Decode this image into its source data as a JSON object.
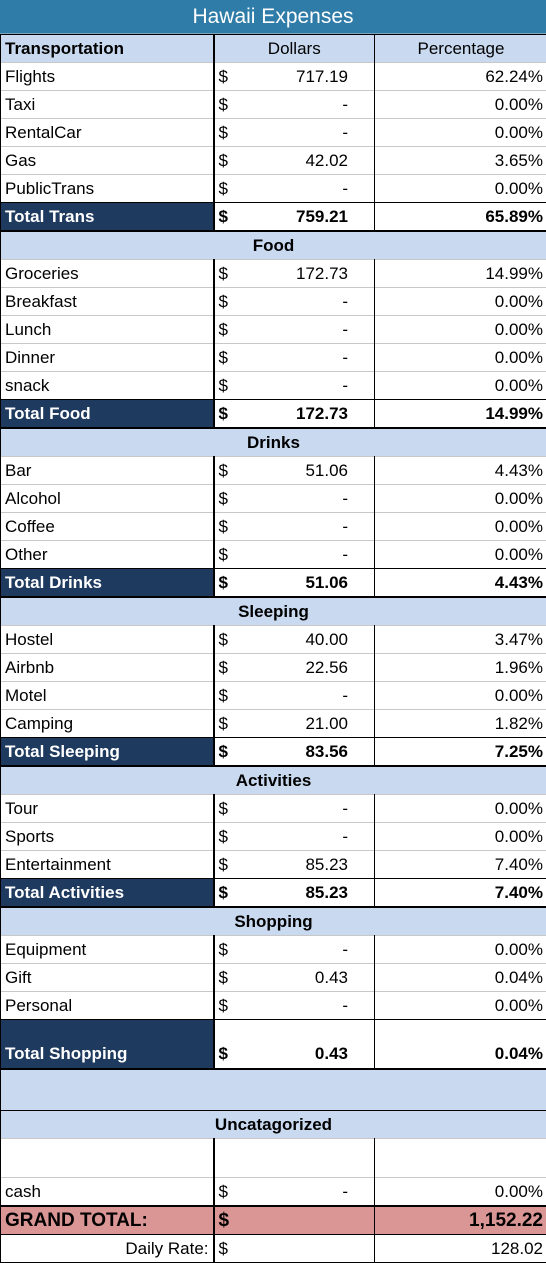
{
  "title": "Hawaii Expenses",
  "columns": {
    "category": "Transportation",
    "dollars": "Dollars",
    "percentage": "Percentage"
  },
  "currency": "$",
  "sections": [
    {
      "name": "",
      "rows": [
        {
          "label": "Flights",
          "amount": "717.19",
          "pct": "62.24%"
        },
        {
          "label": "Taxi",
          "amount": "-",
          "pct": "0.00%"
        },
        {
          "label": "RentalCar",
          "amount": "-",
          "pct": "0.00%"
        },
        {
          "label": "Gas",
          "amount": "42.02",
          "pct": "3.65%"
        },
        {
          "label": "PublicTrans",
          "amount": "-",
          "pct": "0.00%"
        }
      ],
      "total": {
        "label": "Total Trans",
        "amount": "759.21",
        "pct": "65.89%"
      }
    },
    {
      "name": "Food",
      "rows": [
        {
          "label": "Groceries",
          "amount": "172.73",
          "pct": "14.99%"
        },
        {
          "label": "Breakfast",
          "amount": "-",
          "pct": "0.00%"
        },
        {
          "label": "Lunch",
          "amount": "-",
          "pct": "0.00%"
        },
        {
          "label": "Dinner",
          "amount": "-",
          "pct": "0.00%"
        },
        {
          "label": "snack",
          "amount": "-",
          "pct": "0.00%"
        }
      ],
      "total": {
        "label": "Total Food",
        "amount": "172.73",
        "pct": "14.99%"
      }
    },
    {
      "name": "Drinks",
      "rows": [
        {
          "label": "Bar",
          "amount": "51.06",
          "pct": "4.43%"
        },
        {
          "label": "Alcohol",
          "amount": "-",
          "pct": "0.00%"
        },
        {
          "label": "Coffee",
          "amount": "-",
          "pct": "0.00%"
        },
        {
          "label": "Other",
          "amount": "-",
          "pct": "0.00%"
        }
      ],
      "total": {
        "label": "Total Drinks",
        "amount": "51.06",
        "pct": "4.43%"
      }
    },
    {
      "name": "Sleeping",
      "rows": [
        {
          "label": "Hostel",
          "amount": "40.00",
          "pct": "3.47%"
        },
        {
          "label": "Airbnb",
          "amount": "22.56",
          "pct": "1.96%"
        },
        {
          "label": "Motel",
          "amount": "-",
          "pct": "0.00%"
        },
        {
          "label": "Camping",
          "amount": "21.00",
          "pct": "1.82%"
        }
      ],
      "total": {
        "label": "Total Sleeping",
        "amount": "83.56",
        "pct": "7.25%"
      }
    },
    {
      "name": "Activities",
      "rows": [
        {
          "label": "Tour",
          "amount": "-",
          "pct": "0.00%"
        },
        {
          "label": "Sports",
          "amount": "-",
          "pct": "0.00%"
        },
        {
          "label": "Entertainment",
          "amount": "85.23",
          "pct": "7.40%"
        }
      ],
      "total": {
        "label": "Total Activities",
        "amount": "85.23",
        "pct": "7.40%"
      }
    },
    {
      "name": "Shopping",
      "rows": [
        {
          "label": "Equipment",
          "amount": "-",
          "pct": "0.00%"
        },
        {
          "label": "Gift",
          "amount": "0.43",
          "pct": "0.04%"
        },
        {
          "label": "Personal",
          "amount": "-",
          "pct": "0.00%"
        }
      ],
      "total": {
        "label": "Total Shopping",
        "amount": "0.43",
        "pct": "0.04%"
      }
    },
    {
      "name": "Uncatagorized",
      "rows": [
        {
          "label": "cash",
          "amount": "-",
          "pct": "0.00%"
        }
      ],
      "total": null
    }
  ],
  "grand_total": {
    "label": "GRAND TOTAL:",
    "amount": "1,152.22"
  },
  "daily_rate": {
    "label": "Daily Rate:",
    "amount": "128.02"
  },
  "colors": {
    "title_bg": "#2f7ca8",
    "section_bg": "#c9daf0",
    "total_label_bg": "#1f3a5f",
    "grand_total_bg": "#d99694"
  }
}
